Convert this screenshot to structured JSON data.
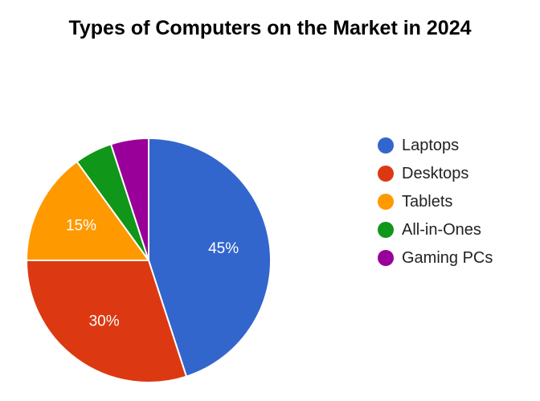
{
  "chart_data": {
    "type": "pie",
    "title": "Types of Computers on the Market in 2024",
    "categories": [
      "Laptops",
      "Desktops",
      "Tablets",
      "All-in-Ones",
      "Gaming PCs"
    ],
    "values": [
      45,
      30,
      15,
      5,
      5
    ],
    "slice_labels": [
      "45%",
      "30%",
      "15%",
      "",
      ""
    ],
    "colors": [
      "#3366cc",
      "#dc3912",
      "#ff9900",
      "#109618",
      "#990099"
    ],
    "legend_position": "right",
    "start_angle": "12 o'clock",
    "direction": "clockwise"
  }
}
